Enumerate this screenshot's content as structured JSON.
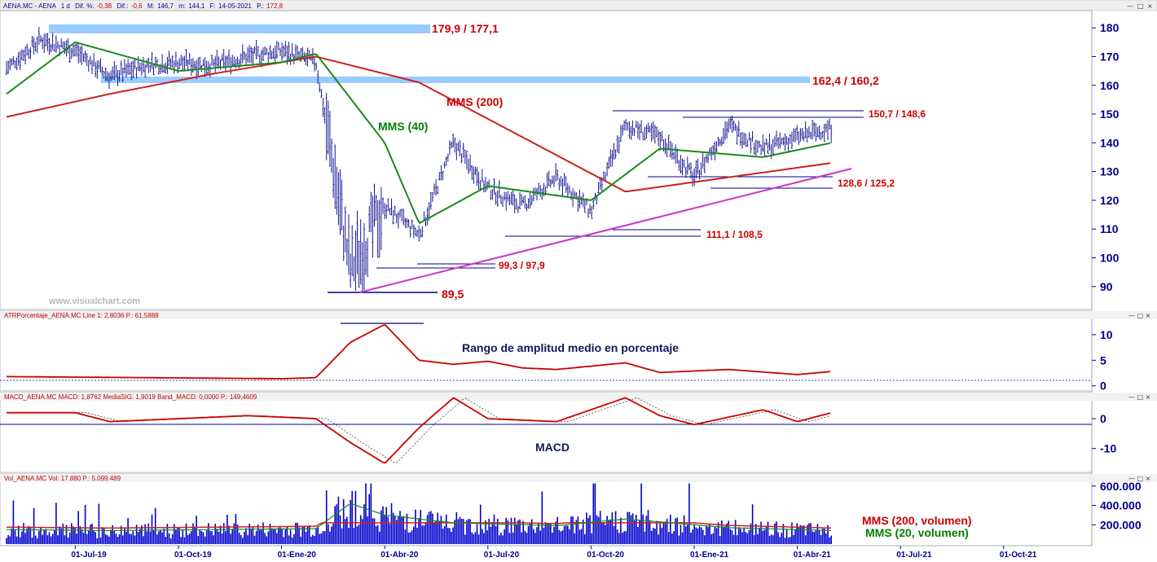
{
  "header": {
    "symbol": "AENA.MC - AENA",
    "period": "1 d",
    "dif_pct_label": "Dif. %:",
    "dif_pct": "-0,38",
    "dif_label": "Dif.:",
    "dif": "-0,6",
    "max_label": "M:",
    "max": "146,7",
    "min_label": "m:",
    "min": "144,1",
    "date_label": "F:",
    "date": "14-05-2021",
    "p_label": "P.:",
    "p": "172,8"
  },
  "window_buttons": [
    "—",
    "□",
    "×"
  ],
  "watermark": "www.visualchart.com",
  "colors": {
    "price_bars": "#00008b",
    "mms200": "#cc2020",
    "mms40": "#1a8a1a",
    "trendline": "#cc33cc",
    "resistance_band": "#99ccff",
    "atr": "#cc0000",
    "macd": "#cc0000",
    "volume_bars": "#0000cc",
    "axis_text": "#00008b"
  },
  "panels": {
    "atr_label": "ATRPorcentaje_AENA.MC  Line 1: 2,8036  P.: 61,5888",
    "macd_label": "MACD_AENA.MC  MACD: 1,8762  MediaSIG: 1,9019  Band_MACD: 0,0000  P.: 149,4609",
    "vol_label": "Vol_AENA.MC  Vol: 17.880  P.: 5.099.489"
  },
  "annotations": {
    "res1": "179,9 / 177,1",
    "res2": "162,4 / 160,2",
    "mms200": "MMS (200)",
    "mms40": "MMS (40)",
    "lvl150": "150,7 / 148,6",
    "lvl128": "128,6 / 125,2",
    "lvl111": "111,1 / 108,5",
    "lvl99": "99,3 / 97,9",
    "lvl89": "89,5",
    "atr_title": "Rango de amplitud medio en porcentaje",
    "macd_title": "MACD",
    "vol_mms200": "MMS (200, volumen)",
    "vol_mms20": "MMS (20, volumen)"
  },
  "chart_data": [
    {
      "type": "candlestick",
      "name": "AENA.MC",
      "x_tick_labels": [
        "01-Jul-19",
        "01-Oct-19",
        "01-Ene-20",
        "01-Abr-20",
        "01-Jul-20",
        "01-Oct-20",
        "01-Ene-21",
        "01-Abr-21",
        "01-Jul-21",
        "01-Oct-21"
      ],
      "y_ticks": [
        90,
        100,
        110,
        120,
        130,
        140,
        150,
        160,
        170,
        180
      ],
      "ylim": [
        82,
        186
      ],
      "series_close_by_month": [
        {
          "x": "2019-05",
          "y": 166
        },
        {
          "x": "2019-06",
          "y": 176
        },
        {
          "x": "2019-07",
          "y": 172
        },
        {
          "x": "2019-08",
          "y": 163
        },
        {
          "x": "2019-09",
          "y": 167
        },
        {
          "x": "2019-10",
          "y": 168
        },
        {
          "x": "2019-11",
          "y": 167
        },
        {
          "x": "2019-12",
          "y": 170
        },
        {
          "x": "2020-01",
          "y": 172
        },
        {
          "x": "2020-02",
          "y": 168
        },
        {
          "x": "2020-03",
          "y": 96
        },
        {
          "x": "2020-04",
          "y": 118
        },
        {
          "x": "2020-05",
          "y": 108
        },
        {
          "x": "2020-06",
          "y": 140
        },
        {
          "x": "2020-07",
          "y": 124
        },
        {
          "x": "2020-08",
          "y": 118
        },
        {
          "x": "2020-09",
          "y": 128
        },
        {
          "x": "2020-10",
          "y": 116
        },
        {
          "x": "2020-11",
          "y": 146
        },
        {
          "x": "2020-12",
          "y": 142
        },
        {
          "x": "2021-01",
          "y": 128
        },
        {
          "x": "2021-02",
          "y": 146
        },
        {
          "x": "2021-03",
          "y": 138
        },
        {
          "x": "2021-04",
          "y": 142
        },
        {
          "x": "2021-05",
          "y": 145
        }
      ],
      "mms200": [
        {
          "x": "2019-05",
          "y": 149
        },
        {
          "x": "2019-08",
          "y": 157
        },
        {
          "x": "2019-11",
          "y": 164
        },
        {
          "x": "2020-02",
          "y": 170
        },
        {
          "x": "2020-05",
          "y": 161
        },
        {
          "x": "2020-08",
          "y": 142
        },
        {
          "x": "2020-11",
          "y": 123
        },
        {
          "x": "2021-02",
          "y": 128
        },
        {
          "x": "2021-05",
          "y": 133
        }
      ],
      "mms40": [
        {
          "x": "2019-05",
          "y": 157
        },
        {
          "x": "2019-07",
          "y": 175
        },
        {
          "x": "2019-10",
          "y": 165
        },
        {
          "x": "2020-01",
          "y": 168
        },
        {
          "x": "2020-02",
          "y": 171
        },
        {
          "x": "2020-04",
          "y": 140
        },
        {
          "x": "2020-05",
          "y": 112
        },
        {
          "x": "2020-07",
          "y": 125
        },
        {
          "x": "2020-10",
          "y": 120
        },
        {
          "x": "2020-12",
          "y": 138
        },
        {
          "x": "2021-03",
          "y": 135
        },
        {
          "x": "2021-05",
          "y": 140
        }
      ],
      "support_resistance": [
        {
          "label": "179,9 / 177,1",
          "y_top": 179.9,
          "y_bottom": 177.1,
          "style": "band"
        },
        {
          "label": "162,4 / 160,2",
          "y_top": 162.4,
          "y_bottom": 160.2,
          "style": "band"
        },
        {
          "label": "150,7 / 148,6",
          "y_top": 150.7,
          "y_bottom": 148.6,
          "style": "lines"
        },
        {
          "label": "128,6 / 125,2",
          "y_top": 128.6,
          "y_bottom": 125.2,
          "style": "lines"
        },
        {
          "label": "111,1 / 108,5",
          "y_top": 111.1,
          "y_bottom": 108.5,
          "style": "lines"
        },
        {
          "label": "99,3 / 97,9",
          "y_top": 99.3,
          "y_bottom": 97.9,
          "style": "lines"
        },
        {
          "label": "89,5",
          "y_top": 89.5,
          "y_bottom": 89.5,
          "style": "line"
        }
      ],
      "trendline": {
        "from": {
          "x": "2020-03",
          "y": 89.5
        },
        "to": {
          "x": "2021-05",
          "y": 132
        }
      }
    },
    {
      "type": "line",
      "name": "ATRPorcentaje_AENA.MC",
      "y_ticks": [
        0,
        5,
        10
      ],
      "ylim": [
        -1,
        13
      ],
      "values": [
        {
          "x": "2019-05",
          "y": 1.8
        },
        {
          "x": "2019-09",
          "y": 1.6
        },
        {
          "x": "2020-01",
          "y": 1.4
        },
        {
          "x": "2020-02",
          "y": 1.6
        },
        {
          "x": "2020-03",
          "y": 8.5
        },
        {
          "x": "2020-04",
          "y": 12
        },
        {
          "x": "2020-05",
          "y": 5
        },
        {
          "x": "2020-06",
          "y": 4.2
        },
        {
          "x": "2020-07",
          "y": 4.8
        },
        {
          "x": "2020-08",
          "y": 3.5
        },
        {
          "x": "2020-09",
          "y": 3.2
        },
        {
          "x": "2020-11",
          "y": 4.5
        },
        {
          "x": "2020-12",
          "y": 2.6
        },
        {
          "x": "2021-02",
          "y": 3.2
        },
        {
          "x": "2021-04",
          "y": 2.2
        },
        {
          "x": "2021-05",
          "y": 2.8
        }
      ]
    },
    {
      "type": "line",
      "name": "MACD_AENA.MC",
      "y_ticks": [
        0,
        -10
      ],
      "ylim": [
        -18,
        6
      ],
      "values": [
        {
          "x": "2019-05",
          "y": 2
        },
        {
          "x": "2019-07",
          "y": 2
        },
        {
          "x": "2019-08",
          "y": -1
        },
        {
          "x": "2019-10",
          "y": 0
        },
        {
          "x": "2019-12",
          "y": 1
        },
        {
          "x": "2020-02",
          "y": 0
        },
        {
          "x": "2020-03",
          "y": -8
        },
        {
          "x": "2020-04",
          "y": -15
        },
        {
          "x": "2020-05",
          "y": -3
        },
        {
          "x": "2020-06",
          "y": 7
        },
        {
          "x": "2020-07",
          "y": 0
        },
        {
          "x": "2020-09",
          "y": -1
        },
        {
          "x": "2020-11",
          "y": 7
        },
        {
          "x": "2020-12",
          "y": 1
        },
        {
          "x": "2021-01",
          "y": -2
        },
        {
          "x": "2021-03",
          "y": 3
        },
        {
          "x": "2021-04",
          "y": -1
        },
        {
          "x": "2021-05",
          "y": 2
        }
      ]
    },
    {
      "type": "bar",
      "name": "Vol_AENA.MC",
      "y_ticks": [
        200000,
        400000,
        600000
      ],
      "y_tick_labels": [
        "200.000",
        "400.000",
        "600.000"
      ],
      "ylim": [
        0,
        640000
      ],
      "values_by_month": [
        {
          "x": "2019-05",
          "y": 150000
        },
        {
          "x": "2019-08",
          "y": 140000
        },
        {
          "x": "2019-11",
          "y": 150000
        },
        {
          "x": "2020-02",
          "y": 160000
        },
        {
          "x": "2020-03",
          "y": 420000
        },
        {
          "x": "2020-04",
          "y": 300000
        },
        {
          "x": "2020-06",
          "y": 220000
        },
        {
          "x": "2020-09",
          "y": 190000
        },
        {
          "x": "2020-11",
          "y": 260000
        },
        {
          "x": "2021-02",
          "y": 170000
        },
        {
          "x": "2021-05",
          "y": 140000
        }
      ]
    }
  ]
}
